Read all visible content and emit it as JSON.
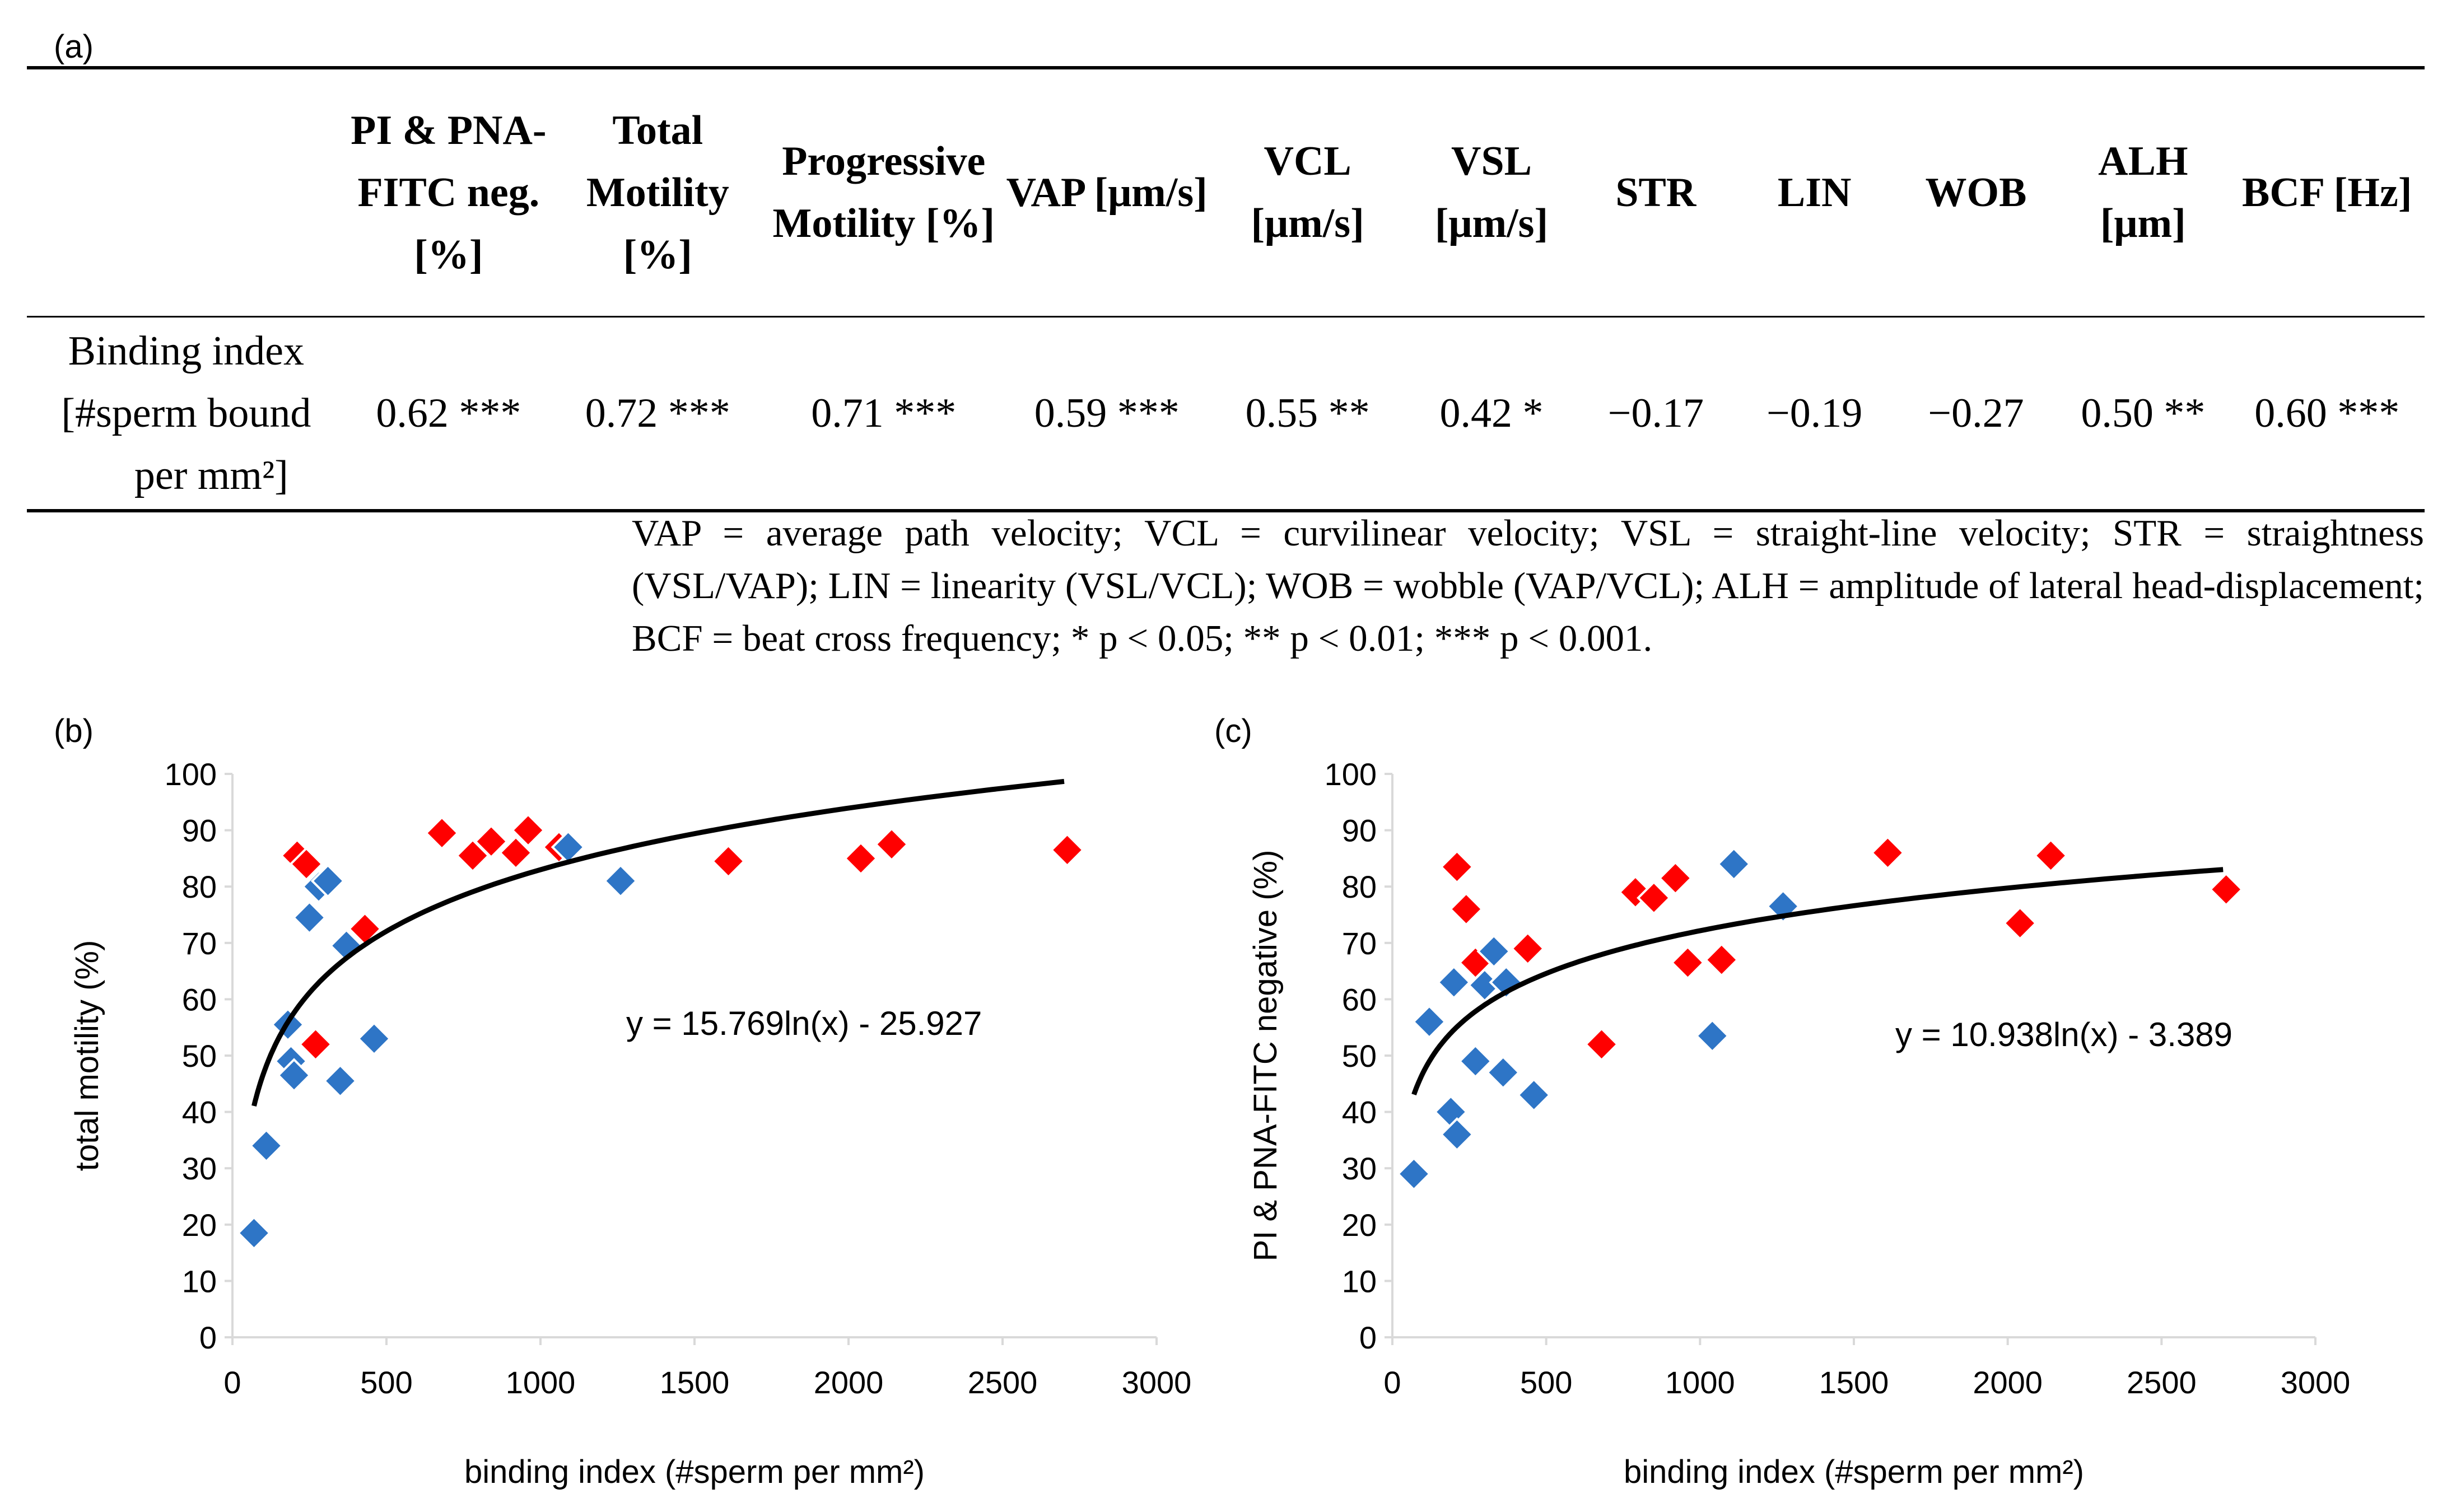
{
  "panel_a": {
    "label": "(a)",
    "columns": [
      {
        "id": "blank",
        "label": ""
      },
      {
        "id": "pi_pna",
        "label": "PI & PNA-FITC neg. [%]"
      },
      {
        "id": "total_motility",
        "label": "Total Motility [%]"
      },
      {
        "id": "progressive_motility",
        "label": "Progressive Motility [%]"
      },
      {
        "id": "vap",
        "label": "VAP [μm/s]"
      },
      {
        "id": "vcl",
        "label": "VCL [μm/s]"
      },
      {
        "id": "vsl",
        "label": "VSL [μm/s]"
      },
      {
        "id": "str",
        "label": "STR"
      },
      {
        "id": "lin",
        "label": "LIN"
      },
      {
        "id": "wob",
        "label": "WOB"
      },
      {
        "id": "alh",
        "label": "ALH [μm]"
      },
      {
        "id": "bcf",
        "label": "BCF [Hz]"
      }
    ],
    "row_label_line1": "Binding index",
    "row_label_line2": "[#sperm bound",
    "row_label_line3": "per mm²]",
    "cells": [
      "0.62 ***",
      "0.72 ***",
      "0.71 ***",
      "0.59 ***",
      "0.55 **",
      "0.42 *",
      "−0.17",
      "−0.19",
      "−0.27",
      "0.50 **",
      "0.60 ***"
    ],
    "footnote": "VAP = average path velocity; VCL = curvilinear velocity; VSL = straight-line velocity; STR = straightness (VSL/VAP); LIN = linearity (VSL/VCL); WOB = wobble (VAP/VCL); ALH = amplitude of lateral head-displacement; BCF = beat cross frequency; * p < 0.05; ** p < 0.01; *** p < 0.001."
  },
  "colors": {
    "series_red": "#ff0000",
    "series_blue": "#2e75c6",
    "trend": "#000000",
    "axis": "#d9d9d9"
  },
  "chart_data": [
    {
      "panel": "(b)",
      "type": "scatter",
      "xlabel": "binding index (#sperm per mm²)",
      "ylabel": "total motility (%)",
      "xlim": [
        0,
        3000
      ],
      "ylim": [
        0,
        100
      ],
      "x_ticks": [
        0,
        500,
        1000,
        1500,
        2000,
        2500,
        3000
      ],
      "y_ticks": [
        0,
        10,
        20,
        30,
        40,
        50,
        60,
        70,
        80,
        90,
        100
      ],
      "grid": false,
      "equation": "y = 15.769ln(x) - 25.927",
      "trend": {
        "a": 15.769,
        "b": -25.927,
        "x_from": 70,
        "x_to": 2700
      },
      "series": [
        {
          "name": "red",
          "color": "#ff0000",
          "points": [
            [
              210,
              85.5
            ],
            [
              240,
              84
            ],
            [
              270,
              52
            ],
            [
              430,
              72.5
            ],
            [
              680,
              89.5
            ],
            [
              780,
              85.5
            ],
            [
              840,
              88
            ],
            [
              920,
              86
            ],
            [
              960,
              90
            ],
            [
              1060,
              87
            ],
            [
              1610,
              84.5
            ],
            [
              2040,
              85
            ],
            [
              2140,
              87.5
            ],
            [
              2710,
              86.5
            ]
          ]
        },
        {
          "name": "blue",
          "color": "#2e75c6",
          "points": [
            [
              70,
              18.5
            ],
            [
              110,
              34
            ],
            [
              180,
              55.5
            ],
            [
              190,
              49
            ],
            [
              200,
              46.5
            ],
            [
              250,
              74.5
            ],
            [
              280,
              80
            ],
            [
              310,
              81
            ],
            [
              350,
              45.5
            ],
            [
              370,
              69.5
            ],
            [
              460,
              53
            ],
            [
              1090,
              87
            ],
            [
              1260,
              81
            ]
          ]
        }
      ]
    },
    {
      "panel": "(c)",
      "type": "scatter",
      "xlabel": "binding index (#sperm per mm²)",
      "ylabel": "PI & PNA-FITC negative (%)",
      "xlim": [
        0,
        3000
      ],
      "ylim": [
        0,
        100
      ],
      "x_ticks": [
        0,
        500,
        1000,
        1500,
        2000,
        2500,
        3000
      ],
      "y_ticks": [
        0,
        10,
        20,
        30,
        40,
        50,
        60,
        70,
        80,
        90,
        100
      ],
      "grid": false,
      "equation": "y = 10.938ln(x) - 3.389",
      "trend": {
        "a": 10.938,
        "b": -3.389,
        "x_from": 70,
        "x_to": 2700
      },
      "series": [
        {
          "name": "red",
          "color": "#ff0000",
          "points": [
            [
              210,
              83.5
            ],
            [
              240,
              76
            ],
            [
              270,
              66.5
            ],
            [
              440,
              69
            ],
            [
              680,
              52
            ],
            [
              790,
              79
            ],
            [
              850,
              78
            ],
            [
              920,
              81.5
            ],
            [
              960,
              66.5
            ],
            [
              1070,
              67
            ],
            [
              1610,
              86
            ],
            [
              2040,
              73.5
            ],
            [
              2140,
              85.5
            ],
            [
              2710,
              79.5
            ]
          ]
        },
        {
          "name": "blue",
          "color": "#2e75c6",
          "points": [
            [
              70,
              29
            ],
            [
              120,
              56
            ],
            [
              190,
              40
            ],
            [
              200,
              63
            ],
            [
              210,
              36
            ],
            [
              270,
              49
            ],
            [
              300,
              62.5
            ],
            [
              330,
              68.5
            ],
            [
              360,
              47
            ],
            [
              370,
              63
            ],
            [
              460,
              43
            ],
            [
              1040,
              53.5
            ],
            [
              1110,
              84
            ],
            [
              1270,
              76.5
            ]
          ]
        }
      ]
    }
  ]
}
